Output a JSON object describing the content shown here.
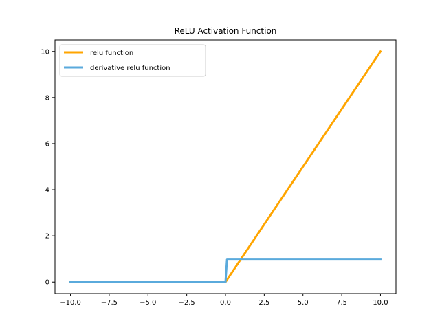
{
  "chart_data": {
    "type": "line",
    "title": "ReLU Activation Function",
    "xlabel": "",
    "ylabel": "",
    "xlim": [
      -11.0,
      11.0
    ],
    "ylim": [
      -0.5,
      10.5
    ],
    "x_ticks": [
      -10.0,
      -7.5,
      -5.0,
      -2.5,
      0.0,
      2.5,
      5.0,
      7.5,
      10.0
    ],
    "x_tick_labels": [
      "−10.0",
      "−7.5",
      "−5.0",
      "−2.5",
      "0.0",
      "2.5",
      "5.0",
      "7.5",
      "10.0"
    ],
    "y_ticks": [
      0,
      2,
      4,
      6,
      8,
      10
    ],
    "y_tick_labels": [
      "0",
      "2",
      "4",
      "6",
      "8",
      "10"
    ],
    "grid": false,
    "legend_position": "top-left",
    "series": [
      {
        "name": "relu function",
        "color": "#ffa500",
        "x": [
          -10,
          0,
          10
        ],
        "y": [
          0,
          0,
          10
        ]
      },
      {
        "name": "derivative relu function",
        "color": "#5aaadc",
        "x": [
          -10,
          0,
          0.1,
          10
        ],
        "y": [
          0,
          0,
          1,
          1
        ]
      }
    ]
  }
}
